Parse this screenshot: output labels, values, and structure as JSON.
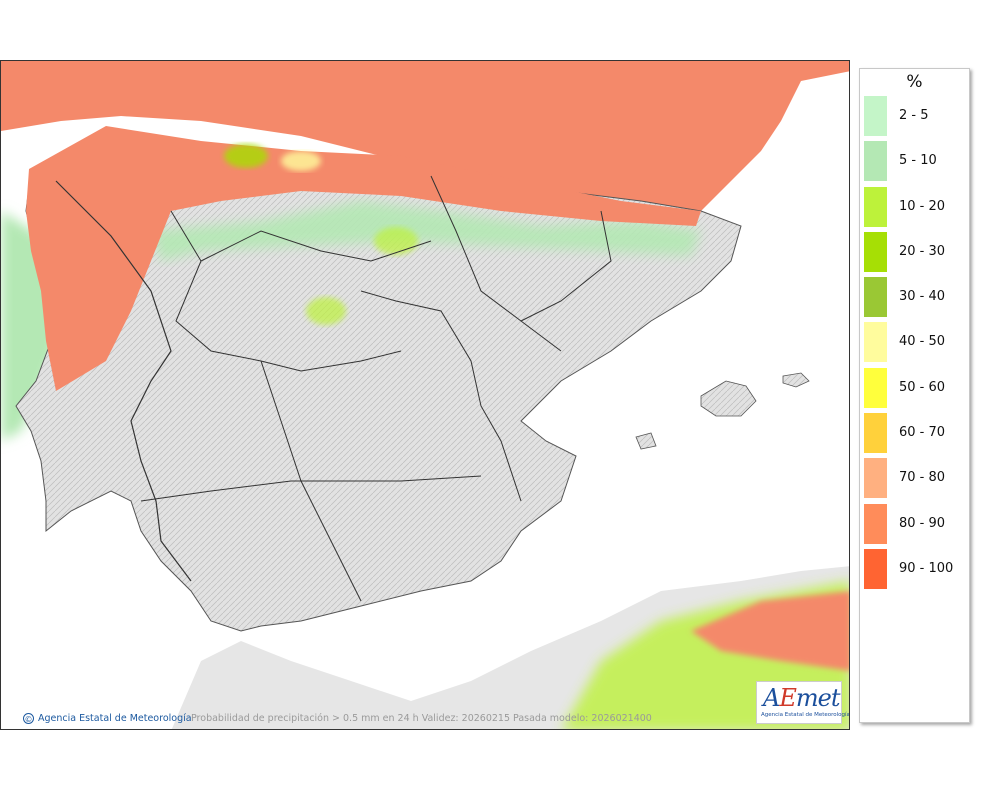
{
  "legend": {
    "unit": "%",
    "items": [
      {
        "label": "2 - 5",
        "color": "#c4f5c8"
      },
      {
        "label": "5 - 10",
        "color": "#b4e8b4"
      },
      {
        "label": "10 - 20",
        "color": "#bdf23a"
      },
      {
        "label": "20 - 30",
        "color": "#a6df05"
      },
      {
        "label": "30 - 40",
        "color": "#9ac834"
      },
      {
        "label": "40 - 50",
        "color": "#fffc9d"
      },
      {
        "label": "50 - 60",
        "color": "#ffff3c"
      },
      {
        "label": "60 - 70",
        "color": "#ffd13b"
      },
      {
        "label": "70 - 80",
        "color": "#ffb080"
      },
      {
        "label": "80 - 90",
        "color": "#ff8c5a"
      },
      {
        "label": "90 - 100",
        "color": "#ff6432"
      }
    ]
  },
  "footer": {
    "credit": "Agencia Estatal de Meteorología",
    "credit_icon": "copyright-icon",
    "caption": "Probabilidad de precipitación > 0.5 mm en 24 h Validez: 20260215 Pasada modelo: 2026021400"
  },
  "logo": {
    "letter_a": "A",
    "letter_e": "E",
    "rest": "met",
    "subtitle": "Agencia Estatal de Meteorología"
  },
  "colors": {
    "sea": "#ffffff",
    "land": "#e6e6e6",
    "high_probability": "#f4896a"
  }
}
